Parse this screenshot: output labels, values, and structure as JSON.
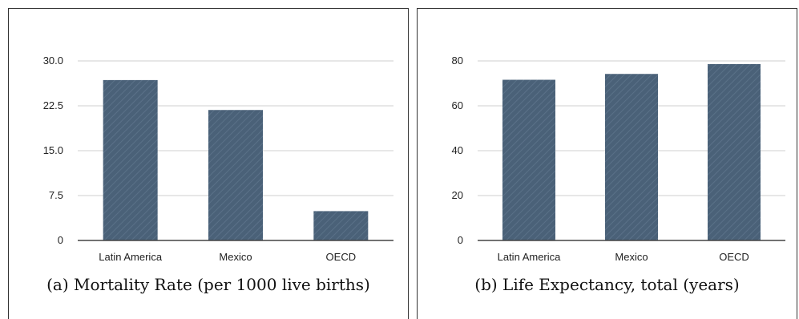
{
  "figures": [
    {
      "caption": "(a) Mortality Rate (per 1000 live births)",
      "chart_data": {
        "type": "bar",
        "title": "",
        "xlabel": "",
        "ylabel": "",
        "categories": [
          "Latin America",
          "Mexico",
          "OECD"
        ],
        "values": [
          26.8,
          21.8,
          4.9
        ],
        "ylim": [
          0,
          30
        ],
        "yticks": [
          "0",
          "7.5",
          "15.0",
          "22.5",
          "30.0"
        ],
        "ytick_values": [
          0,
          7.5,
          15,
          22.5,
          30
        ],
        "grid": true,
        "legend": "none",
        "bar_color": "#4a6178"
      }
    },
    {
      "caption": "(b) Life Expectancy, total (years)",
      "chart_data": {
        "type": "bar",
        "title": "",
        "xlabel": "",
        "ylabel": "",
        "categories": [
          "Latin America",
          "Mexico",
          "OECD"
        ],
        "values": [
          71.6,
          74.2,
          78.6
        ],
        "ylim": [
          0,
          80
        ],
        "yticks": [
          "0",
          "20",
          "40",
          "60",
          "80"
        ],
        "ytick_values": [
          0,
          20,
          40,
          60,
          80
        ],
        "grid": true,
        "legend": "none",
        "bar_color": "#4a6178"
      }
    }
  ]
}
